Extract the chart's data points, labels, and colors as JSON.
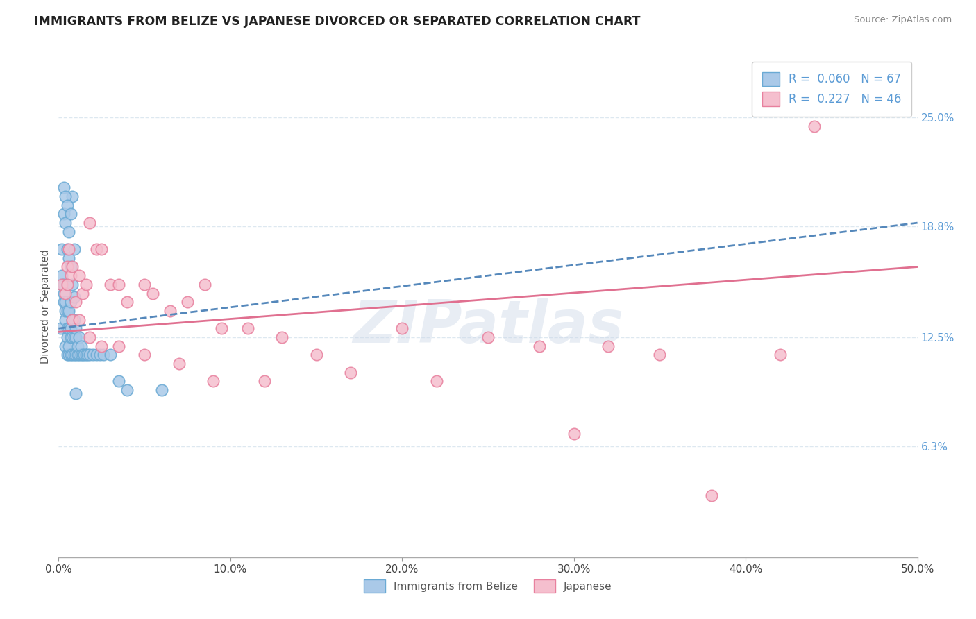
{
  "title": "IMMIGRANTS FROM BELIZE VS JAPANESE DIVORCED OR SEPARATED CORRELATION CHART",
  "source_text": "Source: ZipAtlas.com",
  "ylabel": "Divorced or Separated",
  "legend_label_1": "Immigrants from Belize",
  "legend_label_2": "Japanese",
  "R1": 0.06,
  "N1": 67,
  "R2": 0.227,
  "N2": 46,
  "xlim": [
    0.0,
    0.5
  ],
  "ylim": [
    0.0,
    0.285
  ],
  "xticks": [
    0.0,
    0.1,
    0.2,
    0.3,
    0.4,
    0.5
  ],
  "xtick_labels": [
    "0.0%",
    "10.0%",
    "20.0%",
    "30.0%",
    "40.0%",
    "50.0%"
  ],
  "yticks_right": [
    0.063,
    0.125,
    0.188,
    0.25
  ],
  "ytick_labels_right": [
    "6.3%",
    "12.5%",
    "18.8%",
    "25.0%"
  ],
  "color_blue": "#aac9e8",
  "color_blue_edge": "#6aaad4",
  "color_pink": "#f5bfce",
  "color_pink_edge": "#e8809e",
  "color_blue_line": "#5588bb",
  "color_pink_line": "#e07090",
  "watermark": "ZIPatlas",
  "background_color": "#ffffff",
  "grid_color": "#dde8f0",
  "blue_scatter_x": [
    0.001,
    0.002,
    0.002,
    0.003,
    0.003,
    0.003,
    0.004,
    0.004,
    0.004,
    0.004,
    0.005,
    0.005,
    0.005,
    0.005,
    0.005,
    0.006,
    0.006,
    0.006,
    0.006,
    0.007,
    0.007,
    0.007,
    0.007,
    0.008,
    0.008,
    0.008,
    0.009,
    0.009,
    0.009,
    0.01,
    0.01,
    0.01,
    0.011,
    0.011,
    0.012,
    0.012,
    0.013,
    0.013,
    0.014,
    0.015,
    0.016,
    0.017,
    0.018,
    0.02,
    0.022,
    0.024,
    0.026,
    0.03,
    0.035,
    0.04,
    0.002,
    0.003,
    0.004,
    0.005,
    0.006,
    0.007,
    0.008,
    0.009,
    0.003,
    0.004,
    0.005,
    0.006,
    0.007,
    0.008,
    0.009,
    0.01,
    0.06
  ],
  "blue_scatter_y": [
    0.13,
    0.155,
    0.16,
    0.145,
    0.15,
    0.155,
    0.12,
    0.135,
    0.14,
    0.145,
    0.115,
    0.125,
    0.13,
    0.14,
    0.155,
    0.115,
    0.12,
    0.13,
    0.14,
    0.115,
    0.125,
    0.13,
    0.145,
    0.115,
    0.125,
    0.135,
    0.115,
    0.125,
    0.135,
    0.115,
    0.125,
    0.13,
    0.115,
    0.12,
    0.115,
    0.125,
    0.115,
    0.12,
    0.115,
    0.115,
    0.115,
    0.115,
    0.115,
    0.115,
    0.115,
    0.115,
    0.115,
    0.115,
    0.1,
    0.095,
    0.175,
    0.195,
    0.19,
    0.175,
    0.17,
    0.165,
    0.205,
    0.175,
    0.21,
    0.205,
    0.2,
    0.185,
    0.195,
    0.155,
    0.148,
    0.093,
    0.095
  ],
  "pink_scatter_x": [
    0.002,
    0.004,
    0.005,
    0.006,
    0.007,
    0.008,
    0.01,
    0.012,
    0.014,
    0.016,
    0.018,
    0.022,
    0.025,
    0.03,
    0.035,
    0.04,
    0.05,
    0.055,
    0.065,
    0.075,
    0.085,
    0.095,
    0.11,
    0.13,
    0.15,
    0.2,
    0.25,
    0.28,
    0.32,
    0.35,
    0.42,
    0.44,
    0.005,
    0.008,
    0.012,
    0.018,
    0.025,
    0.035,
    0.05,
    0.07,
    0.09,
    0.12,
    0.17,
    0.22,
    0.3,
    0.38
  ],
  "pink_scatter_y": [
    0.155,
    0.15,
    0.165,
    0.175,
    0.16,
    0.165,
    0.145,
    0.16,
    0.15,
    0.155,
    0.19,
    0.175,
    0.175,
    0.155,
    0.155,
    0.145,
    0.155,
    0.15,
    0.14,
    0.145,
    0.155,
    0.13,
    0.13,
    0.125,
    0.115,
    0.13,
    0.125,
    0.12,
    0.12,
    0.115,
    0.115,
    0.245,
    0.155,
    0.135,
    0.135,
    0.125,
    0.12,
    0.12,
    0.115,
    0.11,
    0.1,
    0.1,
    0.105,
    0.1,
    0.07,
    0.035
  ],
  "blue_line_x0": 0.0,
  "blue_line_x1": 0.5,
  "blue_line_y0": 0.13,
  "blue_line_y1": 0.19,
  "pink_line_x0": 0.0,
  "pink_line_x1": 0.5,
  "pink_line_y0": 0.128,
  "pink_line_y1": 0.165
}
